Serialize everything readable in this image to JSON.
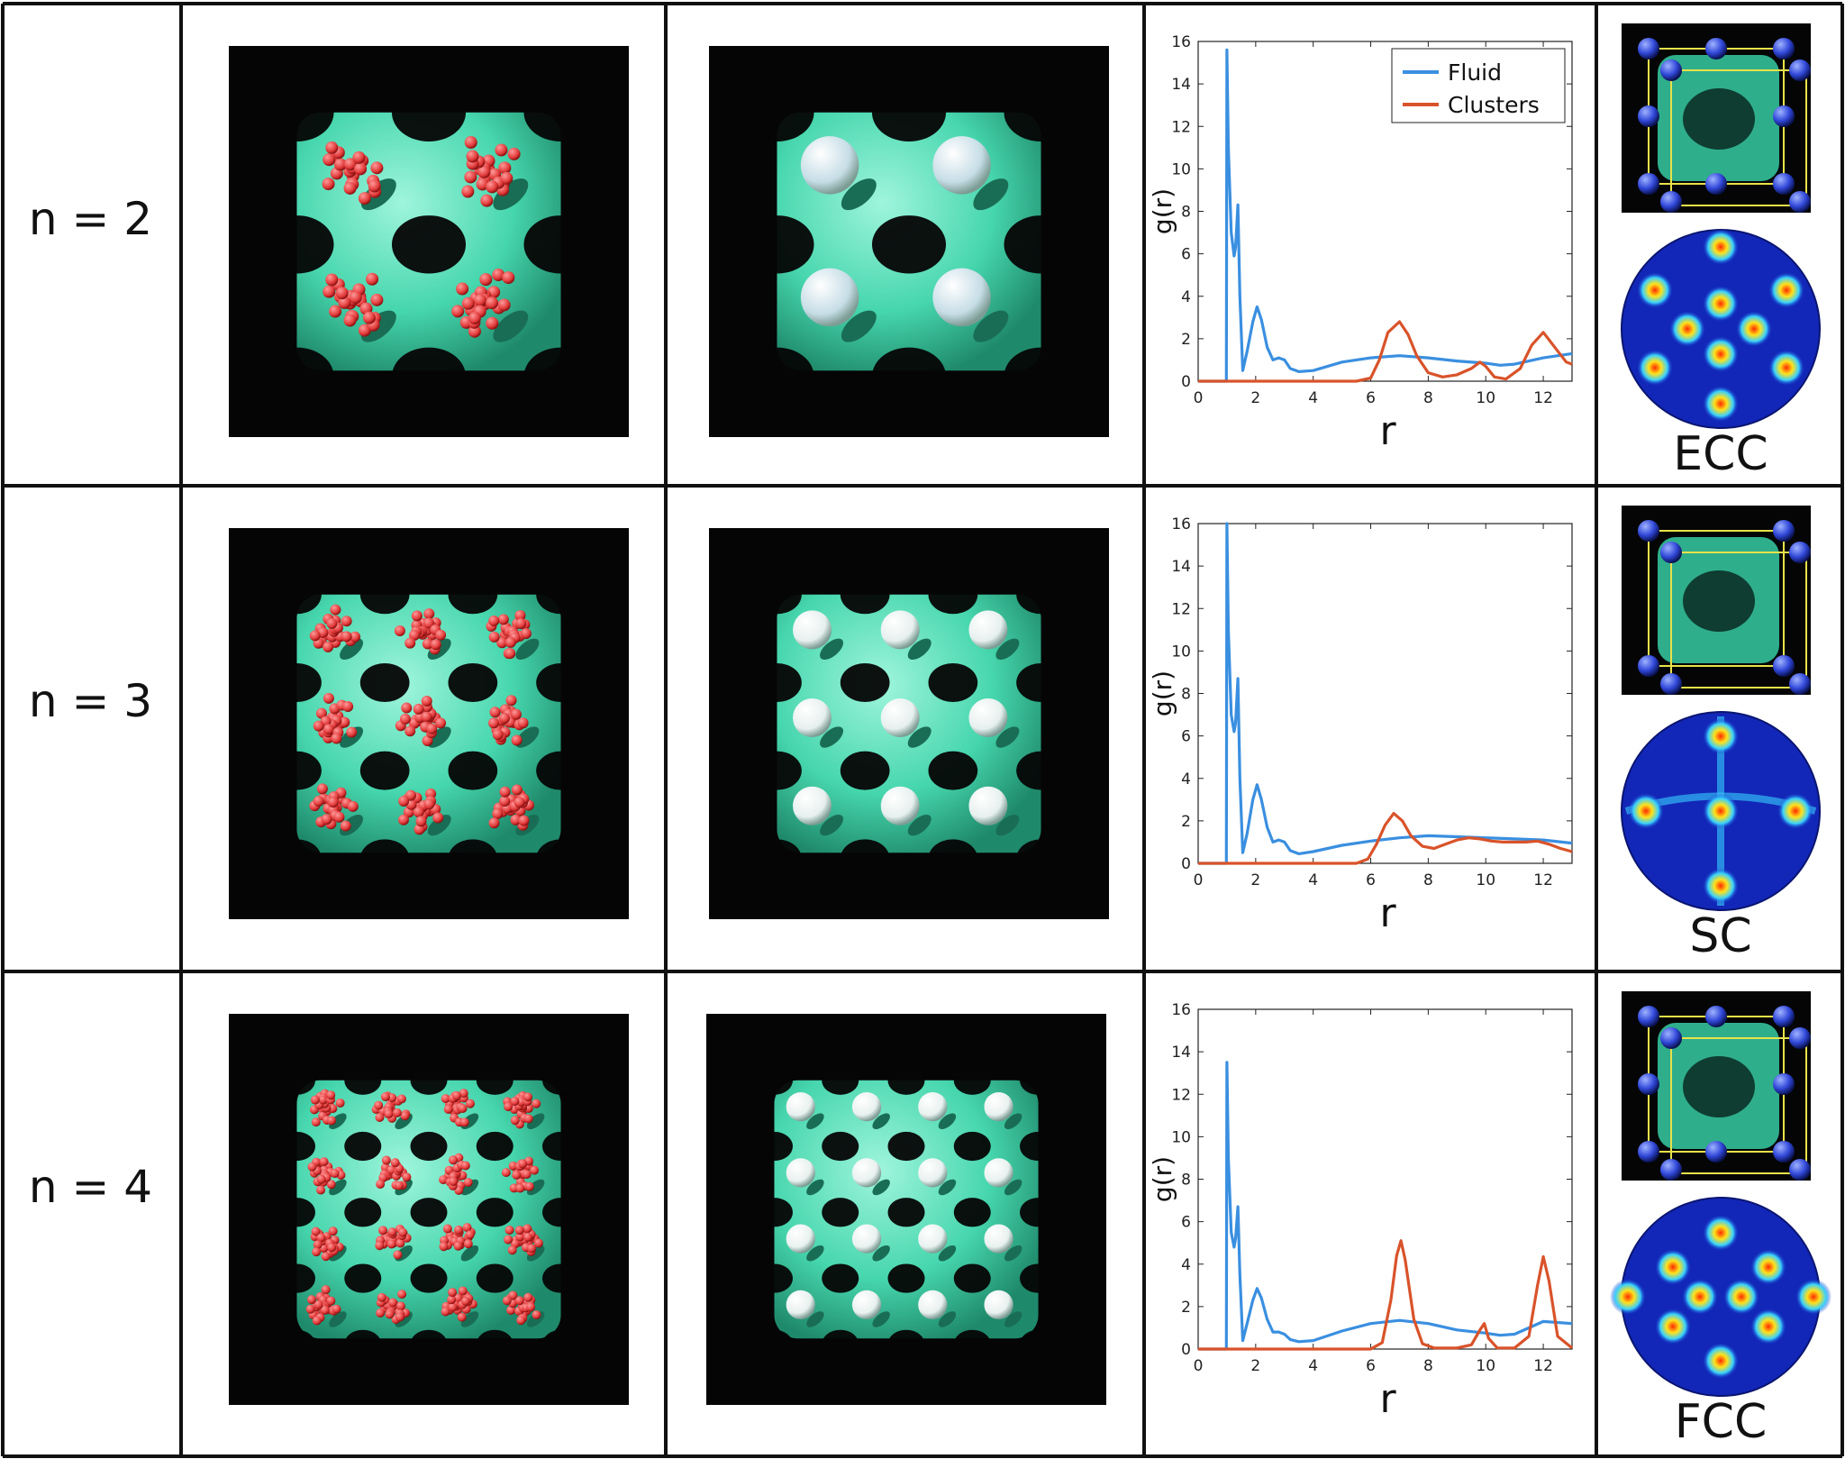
{
  "rows": [
    {
      "label": "n = 2",
      "lattice": "ECC",
      "cells": 2
    },
    {
      "label": "n = 3",
      "lattice": "SC",
      "cells": 3
    },
    {
      "label": "n = 4",
      "lattice": "FCC",
      "cells": 4
    }
  ],
  "chart_data": [
    {
      "type": "line",
      "xlabel": "r",
      "ylabel": "g(r)",
      "xlim": [
        0,
        13
      ],
      "ylim": [
        0,
        16
      ],
      "xticks": [
        0,
        2,
        4,
        6,
        8,
        10,
        12
      ],
      "yticks": [
        0,
        2,
        4,
        6,
        8,
        10,
        12,
        14,
        16
      ],
      "legend": "top-right",
      "series": [
        {
          "name": "Fluid",
          "color": "#3a8fe0",
          "x": [
            0,
            0.98,
            1.0,
            1.05,
            1.15,
            1.25,
            1.3,
            1.38,
            1.45,
            1.55,
            1.7,
            1.9,
            2.05,
            2.2,
            2.4,
            2.6,
            2.8,
            3.0,
            3.2,
            3.5,
            4,
            5,
            6,
            7,
            8,
            9,
            10,
            10.5,
            11,
            12,
            13
          ],
          "y": [
            0,
            0,
            15.6,
            11,
            7,
            5.9,
            6.3,
            8.3,
            4,
            0.5,
            1.4,
            2.8,
            3.5,
            2.9,
            1.6,
            1.0,
            1.1,
            1.0,
            0.6,
            0.45,
            0.5,
            0.9,
            1.1,
            1.2,
            1.1,
            0.95,
            0.85,
            0.75,
            0.8,
            1.1,
            1.3
          ]
        },
        {
          "name": "Clusters",
          "color": "#d9532a",
          "x": [
            0,
            5.5,
            6.0,
            6.3,
            6.6,
            7.0,
            7.3,
            7.6,
            8.0,
            8.5,
            9.0,
            9.5,
            9.8,
            10.0,
            10.3,
            10.7,
            11.2,
            11.6,
            12.0,
            12.4,
            12.8,
            13
          ],
          "y": [
            0,
            0,
            0.15,
            1.0,
            2.3,
            2.8,
            2.2,
            1.2,
            0.4,
            0.2,
            0.3,
            0.6,
            0.9,
            0.7,
            0.2,
            0.1,
            0.6,
            1.7,
            2.3,
            1.6,
            0.9,
            0.8
          ]
        }
      ]
    },
    {
      "type": "line",
      "xlabel": "r",
      "ylabel": "g(r)",
      "xlim": [
        0,
        13
      ],
      "ylim": [
        0,
        16
      ],
      "xticks": [
        0,
        2,
        4,
        6,
        8,
        10,
        12
      ],
      "yticks": [
        0,
        2,
        4,
        6,
        8,
        10,
        12,
        14,
        16
      ],
      "series": [
        {
          "name": "Fluid",
          "color": "#3a8fe0",
          "x": [
            0,
            0.98,
            1.0,
            1.05,
            1.15,
            1.25,
            1.3,
            1.38,
            1.45,
            1.55,
            1.7,
            1.9,
            2.05,
            2.2,
            2.4,
            2.6,
            2.8,
            3.0,
            3.2,
            3.5,
            4,
            5,
            6,
            7,
            8,
            9,
            10,
            11,
            12,
            13
          ],
          "y": [
            0,
            0,
            16,
            11,
            7,
            6.2,
            6.6,
            8.7,
            4,
            0.5,
            1.4,
            3.0,
            3.7,
            3.0,
            1.7,
            1.0,
            1.1,
            1.0,
            0.6,
            0.45,
            0.55,
            0.85,
            1.05,
            1.2,
            1.3,
            1.25,
            1.2,
            1.15,
            1.1,
            0.95
          ]
        },
        {
          "name": "Clusters",
          "color": "#d9532a",
          "x": [
            0,
            5.5,
            5.9,
            6.2,
            6.5,
            6.8,
            7.1,
            7.4,
            7.8,
            8.2,
            8.6,
            9.0,
            9.4,
            9.8,
            10.2,
            10.6,
            11.0,
            11.4,
            11.8,
            12.2,
            12.6,
            13
          ],
          "y": [
            0,
            0,
            0.2,
            0.9,
            1.8,
            2.35,
            2.0,
            1.3,
            0.8,
            0.7,
            0.9,
            1.1,
            1.2,
            1.15,
            1.05,
            1.0,
            1.0,
            1.0,
            1.05,
            0.9,
            0.7,
            0.55
          ]
        }
      ]
    },
    {
      "type": "line",
      "xlabel": "r",
      "ylabel": "g(r)",
      "xlim": [
        0,
        13
      ],
      "ylim": [
        0,
        16
      ],
      "xticks": [
        0,
        2,
        4,
        6,
        8,
        10,
        12
      ],
      "yticks": [
        0,
        2,
        4,
        6,
        8,
        10,
        12,
        14,
        16
      ],
      "series": [
        {
          "name": "Fluid",
          "color": "#3a8fe0",
          "x": [
            0,
            0.98,
            1.0,
            1.05,
            1.15,
            1.25,
            1.3,
            1.38,
            1.45,
            1.55,
            1.7,
            1.9,
            2.05,
            2.2,
            2.4,
            2.6,
            2.8,
            3.0,
            3.2,
            3.5,
            4,
            5,
            6,
            7,
            8,
            9,
            10,
            10.5,
            11,
            12,
            13
          ],
          "y": [
            0,
            0,
            13.5,
            9,
            5.5,
            4.8,
            5.2,
            6.7,
            3.5,
            0.4,
            1.2,
            2.3,
            2.85,
            2.4,
            1.4,
            0.8,
            0.8,
            0.7,
            0.45,
            0.35,
            0.4,
            0.85,
            1.2,
            1.35,
            1.2,
            0.9,
            0.75,
            0.65,
            0.7,
            1.3,
            1.2
          ]
        },
        {
          "name": "Clusters",
          "color": "#d9532a",
          "x": [
            0,
            6.0,
            6.4,
            6.7,
            6.9,
            7.05,
            7.2,
            7.5,
            7.8,
            8.2,
            9.0,
            9.5,
            9.8,
            9.95,
            10.1,
            10.4,
            11.0,
            11.5,
            11.8,
            12.0,
            12.2,
            12.5,
            13
          ],
          "y": [
            0,
            0,
            0.3,
            2.3,
            4.4,
            5.1,
            4.2,
            1.4,
            0.25,
            0.05,
            0.05,
            0.2,
            0.9,
            1.2,
            0.5,
            0.05,
            0.05,
            0.6,
            3.0,
            4.35,
            3.2,
            0.6,
            0.05
          ]
        }
      ]
    }
  ],
  "colors": {
    "fluid": "#3a8fe0",
    "clusters": "#d9532a",
    "surface": "#46d6ad",
    "particles": "#e23a3a",
    "background": "#050505",
    "grid_lines": "#111111"
  }
}
